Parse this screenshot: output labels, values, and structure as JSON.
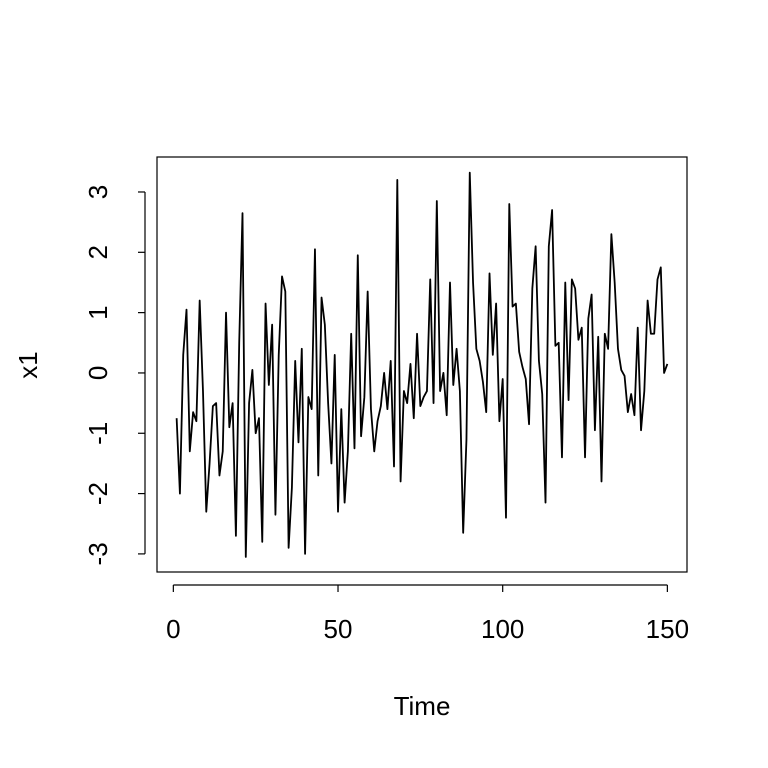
{
  "chart_data": {
    "type": "line",
    "xlabel": "Time",
    "ylabel": "x1",
    "color": "#000000",
    "x": [
      1,
      2,
      3,
      4,
      5,
      6,
      7,
      8,
      9,
      10,
      11,
      12,
      13,
      14,
      15,
      16,
      17,
      18,
      19,
      20,
      21,
      22,
      23,
      24,
      25,
      26,
      27,
      28,
      29,
      30,
      31,
      32,
      33,
      34,
      35,
      36,
      37,
      38,
      39,
      40,
      41,
      42,
      43,
      44,
      45,
      46,
      47,
      48,
      49,
      50,
      51,
      52,
      53,
      54,
      55,
      56,
      57,
      58,
      59,
      60,
      61,
      62,
      63,
      64,
      65,
      66,
      67,
      68,
      69,
      70,
      71,
      72,
      73,
      74,
      75,
      76,
      77,
      78,
      79,
      80,
      81,
      82,
      83,
      84,
      85,
      86,
      87,
      88,
      89,
      90,
      91,
      92,
      93,
      94,
      95,
      96,
      97,
      98,
      99,
      100,
      101,
      102,
      103,
      104,
      105,
      106,
      107,
      108,
      109,
      110,
      111,
      112,
      113,
      114,
      115,
      116,
      117,
      118,
      119,
      120,
      121,
      122,
      123,
      124,
      125,
      126,
      127,
      128,
      129,
      130,
      131,
      132,
      133,
      134,
      135,
      136,
      137,
      138,
      139,
      140,
      141,
      142,
      143,
      144,
      145,
      146,
      147,
      148,
      149,
      150
    ],
    "values": [
      -0.75,
      -2.0,
      0.3,
      1.05,
      -1.3,
      -0.65,
      -0.8,
      1.2,
      -0.3,
      -2.3,
      -1.5,
      -0.55,
      -0.5,
      -1.7,
      -1.3,
      1.0,
      -0.9,
      -0.5,
      -2.7,
      0.5,
      2.65,
      -3.05,
      -0.5,
      0.05,
      -1.0,
      -0.75,
      -2.8,
      1.15,
      -0.2,
      0.8,
      -2.35,
      0.3,
      1.6,
      1.35,
      -2.9,
      -1.9,
      0.2,
      -1.15,
      0.4,
      -3.0,
      -0.4,
      -0.6,
      2.05,
      -1.7,
      1.25,
      0.8,
      -0.5,
      -1.5,
      0.3,
      -2.3,
      -0.6,
      -2.15,
      -1.3,
      0.65,
      -1.25,
      1.95,
      -1.05,
      -0.4,
      1.35,
      -0.6,
      -1.3,
      -0.8,
      -0.55,
      0.0,
      -0.6,
      0.2,
      -1.55,
      3.2,
      -1.8,
      -0.3,
      -0.5,
      0.15,
      -0.75,
      0.65,
      -0.55,
      -0.4,
      -0.3,
      1.55,
      -0.5,
      2.85,
      -0.3,
      0.0,
      -0.7,
      1.5,
      -0.2,
      0.4,
      -0.3,
      -2.65,
      -1.1,
      3.32,
      1.5,
      0.4,
      0.2,
      -0.15,
      -0.65,
      1.65,
      0.3,
      1.15,
      -0.8,
      -0.1,
      -2.4,
      2.8,
      1.1,
      1.15,
      0.35,
      0.1,
      -0.1,
      -0.85,
      1.4,
      2.1,
      0.2,
      -0.35,
      -2.15,
      2.1,
      2.7,
      0.45,
      0.5,
      -1.4,
      1.5,
      -0.45,
      1.55,
      1.4,
      0.55,
      0.75,
      -1.4,
      0.9,
      1.3,
      -0.95,
      0.6,
      -1.8,
      0.65,
      0.4,
      2.3,
      1.5,
      0.4,
      0.05,
      -0.05,
      -0.65,
      -0.35,
      -0.7,
      0.75,
      -0.95,
      -0.3,
      1.2,
      0.65,
      0.65,
      1.55,
      1.75,
      0.0,
      0.15
    ],
    "xlim": [
      -4.96,
      155.96
    ],
    "xticks": [
      0,
      50,
      100,
      150
    ],
    "ylim": [
      -3.3,
      3.58
    ],
    "yticks": [
      -3,
      -2,
      -1,
      0,
      1,
      2,
      3
    ]
  }
}
